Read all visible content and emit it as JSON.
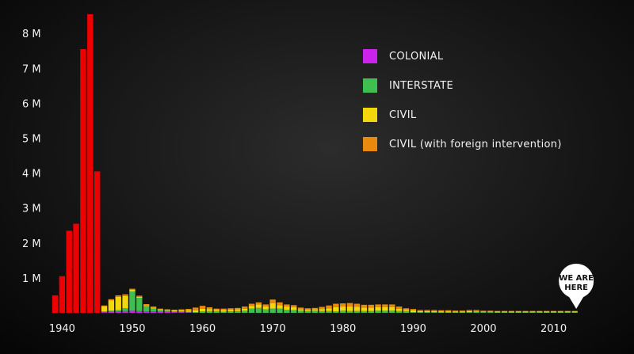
{
  "chart_data": {
    "type": "bar",
    "stacked": true,
    "y_ticks": [
      {
        "value": 1,
        "label": "1 M"
      },
      {
        "value": 2,
        "label": "2 M"
      },
      {
        "value": 3,
        "label": "3 M"
      },
      {
        "value": 4,
        "label": "4 M"
      },
      {
        "value": 5,
        "label": "5 M"
      },
      {
        "value": 6,
        "label": "6 M"
      },
      {
        "value": 7,
        "label": "7 M"
      },
      {
        "value": 8,
        "label": "8 M"
      }
    ],
    "x_ticks": [
      "1940",
      "1950",
      "1960",
      "1970",
      "1980",
      "1990",
      "2000",
      "2010"
    ],
    "xlim": [
      1939,
      2014
    ],
    "ylim": [
      0,
      8.6
    ],
    "ww2_color": "#ee0000",
    "ww2": {
      "years": [
        1939,
        1940,
        1941,
        1942,
        1943,
        1944,
        1945
      ],
      "values": [
        0.5,
        1.05,
        2.35,
        2.55,
        7.55,
        8.55,
        4.05
      ]
    },
    "series": [
      {
        "name": "COLONIAL",
        "color": "#cc22ee",
        "values": [
          0,
          0,
          0,
          0,
          0,
          0,
          0,
          0.02,
          0.03,
          0.04,
          0.05,
          0.06,
          0.05,
          0.04,
          0.04,
          0.03,
          0.03,
          0.02,
          0.02,
          0.01,
          0,
          0,
          0,
          0,
          0,
          0,
          0,
          0,
          0,
          0,
          0,
          0,
          0,
          0,
          0,
          0,
          0,
          0,
          0,
          0,
          0,
          0,
          0,
          0,
          0,
          0,
          0,
          0,
          0,
          0,
          0,
          0,
          0,
          0,
          0,
          0,
          0,
          0,
          0,
          0,
          0,
          0,
          0,
          0,
          0,
          0,
          0,
          0,
          0,
          0,
          0,
          0,
          0,
          0,
          0
        ]
      },
      {
        "name": "INTERSTATE",
        "color": "#3fbf4f",
        "values": [
          0,
          0,
          0,
          0,
          0,
          0,
          0,
          0.02,
          0.03,
          0.04,
          0.08,
          0.55,
          0.38,
          0.15,
          0.08,
          0.05,
          0.03,
          0.02,
          0.02,
          0.02,
          0.02,
          0.04,
          0.05,
          0.05,
          0.03,
          0.04,
          0.05,
          0.06,
          0.12,
          0.14,
          0.1,
          0.12,
          0.12,
          0.09,
          0.08,
          0.06,
          0.05,
          0.06,
          0.05,
          0.05,
          0.04,
          0.06,
          0.05,
          0.05,
          0.05,
          0.05,
          0.06,
          0.06,
          0.06,
          0.05,
          0.05,
          0.02,
          0.02,
          0.02,
          0.02,
          0.01,
          0.01,
          0.01,
          0.01,
          0.02,
          0.03,
          0.02,
          0.02,
          0.01,
          0.01,
          0.01,
          0.01,
          0.01,
          0.01,
          0.01,
          0.01,
          0.01,
          0.01,
          0.01,
          0.01
        ]
      },
      {
        "name": "CIVIL",
        "color": "#f2d70a",
        "values": [
          0,
          0,
          0,
          0,
          0,
          0,
          0,
          0.15,
          0.3,
          0.38,
          0.35,
          0.05,
          0.03,
          0.03,
          0.03,
          0.02,
          0.02,
          0.03,
          0.03,
          0.04,
          0.05,
          0.08,
          0.06,
          0.04,
          0.05,
          0.05,
          0.05,
          0.06,
          0.08,
          0.1,
          0.08,
          0.16,
          0.1,
          0.09,
          0.08,
          0.04,
          0.04,
          0.04,
          0.06,
          0.08,
          0.12,
          0.12,
          0.13,
          0.12,
          0.1,
          0.1,
          0.1,
          0.1,
          0.1,
          0.07,
          0.04,
          0.05,
          0.03,
          0.03,
          0.03,
          0.03,
          0.03,
          0.02,
          0.02,
          0.03,
          0.02,
          0.02,
          0.02,
          0.02,
          0.02,
          0.02,
          0.02,
          0.02,
          0.02,
          0.02,
          0.02,
          0.02,
          0.02,
          0.02,
          0.02
        ]
      },
      {
        "name": "CIVIL (with foreign intervention)",
        "color": "#e98a0e",
        "values": [
          0,
          0,
          0,
          0,
          0,
          0,
          0,
          0.02,
          0.03,
          0.04,
          0.05,
          0.03,
          0.03,
          0.03,
          0.03,
          0.02,
          0.02,
          0.02,
          0.03,
          0.04,
          0.08,
          0.08,
          0.05,
          0.03,
          0.04,
          0.04,
          0.04,
          0.06,
          0.06,
          0.06,
          0.06,
          0.1,
          0.08,
          0.06,
          0.06,
          0.05,
          0.04,
          0.04,
          0.06,
          0.08,
          0.1,
          0.09,
          0.1,
          0.09,
          0.08,
          0.08,
          0.08,
          0.08,
          0.08,
          0.06,
          0.04,
          0.04,
          0.03,
          0.03,
          0.03,
          0.03,
          0.03,
          0.03,
          0.03,
          0.03,
          0.03,
          0.02,
          0.02,
          0.02,
          0.02,
          0.02,
          0.02,
          0.02,
          0.02,
          0.02,
          0.02,
          0.02,
          0.02,
          0.02,
          0.02
        ]
      }
    ],
    "legend_position": "top-right",
    "grid": false,
    "marker": {
      "text_line1": "WE ARE",
      "text_line2": "HERE",
      "x": 2013
    }
  }
}
